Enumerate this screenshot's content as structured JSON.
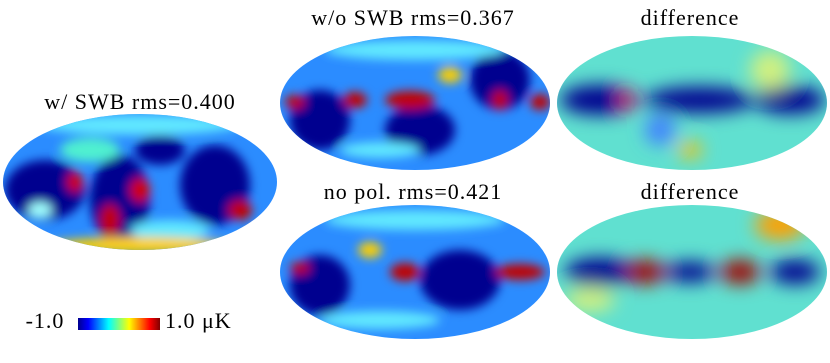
{
  "panels": [
    {
      "title": "w/ SWB rms=0.400"
    },
    {
      "title": "w/o SWB rms=0.367"
    },
    {
      "title": "difference"
    },
    {
      "title": "no pol. rms=0.421"
    },
    {
      "title": "difference"
    }
  ],
  "colorbar": {
    "min_label": "-1.0",
    "max_label": "1.0 μK"
  }
}
